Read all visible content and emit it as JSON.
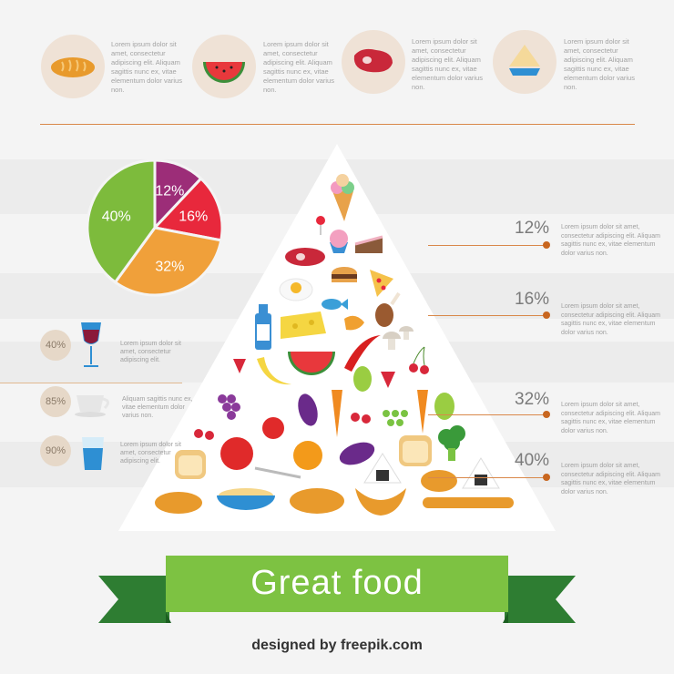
{
  "top_items": [
    {
      "icon": "bread-icon",
      "text": "Lorem ipsum dolor sit amet, consectetur adipiscing elit. Aliquam sagittis nunc ex, vitae elementum dolor varius non."
    },
    {
      "icon": "watermelon-icon",
      "text": "Lorem ipsum dolor sit amet, consectetur adipiscing elit. Aliquam sagittis nunc ex, vitae elementum dolor varius non."
    },
    {
      "icon": "meat-icon",
      "text": "Lorem ipsum dolor sit amet, consectetur adipiscing elit. Aliquam sagittis nunc ex, vitae elementum dolor varius non."
    },
    {
      "icon": "cake-icon",
      "text": "Lorem ipsum dolor sit amet, consectetur adipiscing elit. Aliquam sagittis nunc ex, vitae elementum dolor varius non."
    }
  ],
  "pie": {
    "slices": [
      {
        "label": "12%",
        "value": 12,
        "color": "#9c2d78"
      },
      {
        "label": "16%",
        "value": 16,
        "color": "#e8283c"
      },
      {
        "label": "32%",
        "value": 32,
        "color": "#f0a03a"
      },
      {
        "label": "40%",
        "value": 40,
        "color": "#7dbb3c"
      }
    ]
  },
  "right_items": [
    {
      "pct": "12%",
      "text": "Lorem ipsum dolor sit amet, consectetur adipiscing elit. Aliquam sagittis nunc ex, vitae elementum dolor varius non."
    },
    {
      "pct": "16%",
      "text": "Lorem ipsum dolor sit amet, consectetur adipiscing elit. Aliquam sagittis nunc ex, vitae elementum dolor varius non."
    },
    {
      "pct": "32%",
      "text": "Lorem ipsum dolor sit amet, consectetur adipiscing elit. Aliquam sagittis nunc ex, vitae elementum dolor varius non."
    },
    {
      "pct": "40%",
      "text": "Lorem ipsum dolor sit amet, consectetur adipiscing elit. Aliquam sagittis nunc ex, vitae elementum dolor varius non."
    }
  ],
  "left_items": [
    {
      "pct": "40%",
      "icon": "wine-glass-icon",
      "text": "Lorem ipsum dolor sit amet, consectetur adipiscing elit."
    },
    {
      "pct": "85%",
      "icon": "cup-icon",
      "text": "Aliquam sagittis nunc ex, vitae elementum dolor varius non."
    },
    {
      "pct": "90%",
      "icon": "water-glass-icon",
      "text": "Lorem ipsum dolor sit amet, consectetur adipiscing elit."
    }
  ],
  "banner": {
    "title": "Great food"
  },
  "credit": "designed by freepik.com",
  "colors": {
    "accent": "#d9884a",
    "ribbon_green": "#7dc242",
    "ribbon_dark": "#2e7d32"
  }
}
